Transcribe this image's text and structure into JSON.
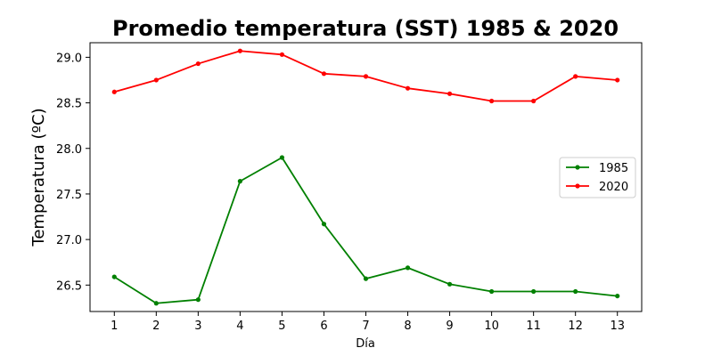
{
  "chart_data": {
    "type": "line",
    "title": "Promedio temperatura (SST) 1985 & 2020",
    "xlabel": "Día",
    "ylabel": "Temperatura (ºC)",
    "x": [
      1,
      2,
      3,
      4,
      5,
      6,
      7,
      8,
      9,
      10,
      11,
      12,
      13
    ],
    "x_tick_labels": [
      "1",
      "2",
      "3",
      "4",
      "5",
      "6",
      "7",
      "8",
      "9",
      "10",
      "11",
      "12",
      "13"
    ],
    "xlim": [
      0.42,
      13.58
    ],
    "ylim": [
      26.21,
      29.16
    ],
    "y_ticks": [
      26.5,
      27.0,
      27.5,
      28.0,
      28.5,
      29.0
    ],
    "y_tick_labels": [
      "26.5",
      "27.0",
      "27.5",
      "28.0",
      "28.5",
      "29.0"
    ],
    "grid": false,
    "legend_position": "center-right",
    "series": [
      {
        "name": "1985",
        "color": "#008000",
        "values": [
          26.59,
          26.3,
          26.34,
          27.64,
          27.9,
          27.17,
          26.57,
          26.69,
          26.51,
          26.43,
          26.43,
          26.43,
          26.38
        ]
      },
      {
        "name": "2020",
        "color": "#ff0000",
        "values": [
          28.62,
          28.75,
          28.93,
          29.07,
          29.03,
          28.82,
          28.79,
          28.66,
          28.6,
          28.52,
          28.52,
          28.79,
          28.75
        ]
      }
    ]
  }
}
